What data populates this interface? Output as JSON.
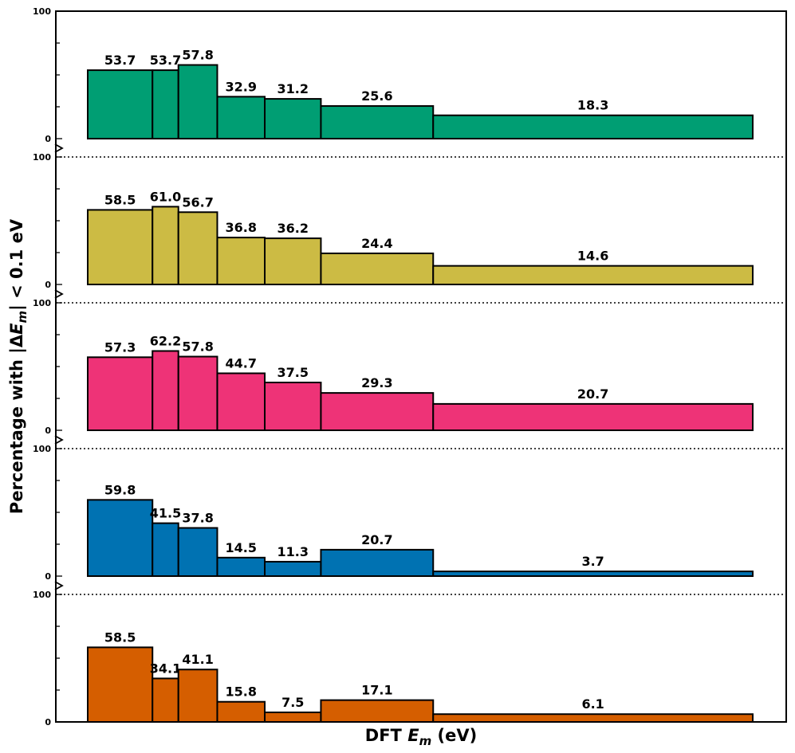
{
  "chart_data": {
    "type": "bar",
    "xlabel": "DFT E_m (eV)",
    "xlabel_parts": {
      "main": "DFT ",
      "italic": "E",
      "sub": "m",
      "rest": " (eV)"
    },
    "ylabel": "Percentage with |ΔE_m| < 0.1 eV",
    "ylabel_parts": {
      "pre": "Percentage with |Δ",
      "italic": "E",
      "sub": "m",
      "post": "| < 0.1 eV"
    },
    "ylim": [
      0,
      100
    ],
    "y_ticks": [
      "0",
      "100"
    ],
    "grid": false,
    "legend": "none",
    "bin_edges": [
      0,
      1.5,
      2.1,
      3.0,
      4.1,
      5.4,
      8.0,
      15.4
    ],
    "panels": [
      {
        "color": "#009E73",
        "values": [
          53.7,
          53.7,
          57.8,
          32.9,
          31.2,
          25.6,
          18.3
        ],
        "labels": [
          "53.7",
          "53.7",
          "57.8",
          "32.9",
          "31.2",
          "25.6",
          "18.3"
        ]
      },
      {
        "color": "#CCBB44",
        "values": [
          58.5,
          61.0,
          56.7,
          36.8,
          36.2,
          24.4,
          14.6
        ],
        "labels": [
          "58.5",
          "61.0",
          "56.7",
          "36.8",
          "36.2",
          "24.4",
          "14.6"
        ]
      },
      {
        "color": "#EE3377",
        "values": [
          57.3,
          62.2,
          57.8,
          44.7,
          37.5,
          29.3,
          20.7
        ],
        "labels": [
          "57.3",
          "62.2",
          "57.8",
          "44.7",
          "37.5",
          "29.3",
          "20.7"
        ]
      },
      {
        "color": "#0072B2",
        "values": [
          59.8,
          41.5,
          37.8,
          14.5,
          11.3,
          20.7,
          3.7
        ],
        "labels": [
          "59.8",
          "41.5",
          "37.8",
          "14.5",
          "11.3",
          "20.7",
          "3.7"
        ]
      },
      {
        "color": "#D55E00",
        "values": [
          58.5,
          34.1,
          41.1,
          15.8,
          7.5,
          17.1,
          6.1
        ],
        "labels": [
          "58.5",
          "34.1",
          "41.1",
          "15.8",
          "7.5",
          "17.1",
          "6.1"
        ]
      }
    ]
  }
}
